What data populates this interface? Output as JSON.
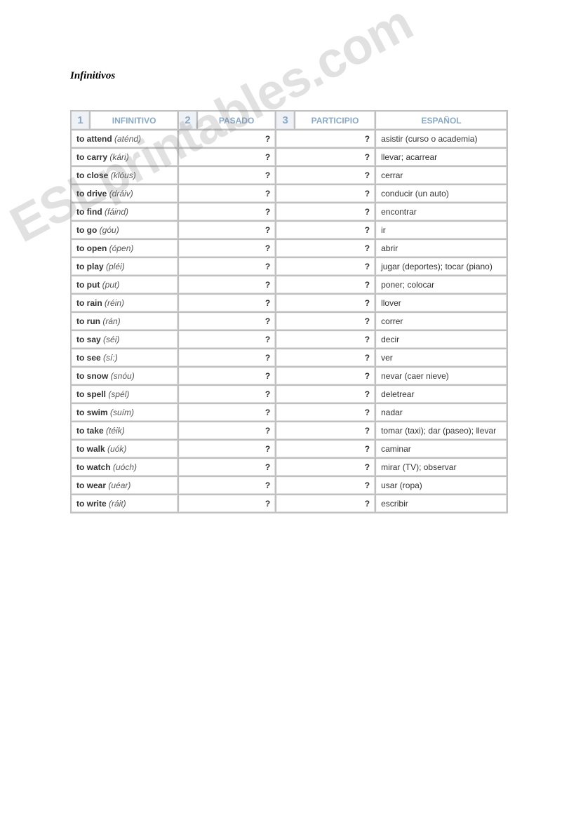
{
  "title": "Infinitivos",
  "watermark": "ESLprintables.com",
  "headers": {
    "num1": "1",
    "infinitivo": "INFINITIVO",
    "num2": "2",
    "pasado": "PASADO",
    "num3": "3",
    "participio": "PARTICIPIO",
    "espanol": "ESPAÑOL"
  },
  "question_mark": "?",
  "rows": [
    {
      "verb": "to attend",
      "pron": "(aténd)",
      "es": "asistir (curso o academia)"
    },
    {
      "verb": "to carry",
      "pron": "(kári)",
      "es": "llevar; acarrear"
    },
    {
      "verb": "to close",
      "pron": "(klóus)",
      "es": "cerrar"
    },
    {
      "verb": "to drive",
      "pron": "(dráiv)",
      "es": "conducir (un auto)"
    },
    {
      "verb": "to find",
      "pron": "(fáind)",
      "es": "encontrar"
    },
    {
      "verb": "to go",
      "pron": "(góu)",
      "es": "ir"
    },
    {
      "verb": "to open",
      "pron": "(ópen)",
      "es": "abrir"
    },
    {
      "verb": "to play",
      "pron": "(pléi)",
      "es": "jugar (deportes); tocar (piano)"
    },
    {
      "verb": "to put",
      "pron": "(put)",
      "es": "poner; colocar"
    },
    {
      "verb": "to rain",
      "pron": "(réin)",
      "es": "llover"
    },
    {
      "verb": "to run",
      "pron": "(rán)",
      "es": "correr"
    },
    {
      "verb": "to say",
      "pron": "(séi)",
      "es": "decir"
    },
    {
      "verb": "to see",
      "pron": "(sí:)",
      "es": "ver"
    },
    {
      "verb": "to snow",
      "pron": "(snóu)",
      "es": "nevar (caer nieve)"
    },
    {
      "verb": "to spell",
      "pron": "(spél)",
      "es": "deletrear"
    },
    {
      "verb": "to swim",
      "pron": "(suím)",
      "es": "nadar"
    },
    {
      "verb": "to take",
      "pron": "(téik)",
      "es": "tomar (taxi); dar (paseo); llevar"
    },
    {
      "verb": "to walk",
      "pron": "(uók)",
      "es": "caminar"
    },
    {
      "verb": "to watch",
      "pron": "(uóch)",
      "es": "mirar (TV); observar"
    },
    {
      "verb": "to wear",
      "pron": "(uéar)",
      "es": "usar (ropa)"
    },
    {
      "verb": "to write",
      "pron": "(ráit)",
      "es": "escribir"
    }
  ],
  "styles": {
    "header_text_color": "#8aa9c7",
    "row_highlight_bg": "#faf2a9",
    "question_color": "#cc0000",
    "table_border_color": "#c0c0c0",
    "cell_bg": "#ffffff",
    "font_size_body": 12,
    "font_size_title": 15
  }
}
